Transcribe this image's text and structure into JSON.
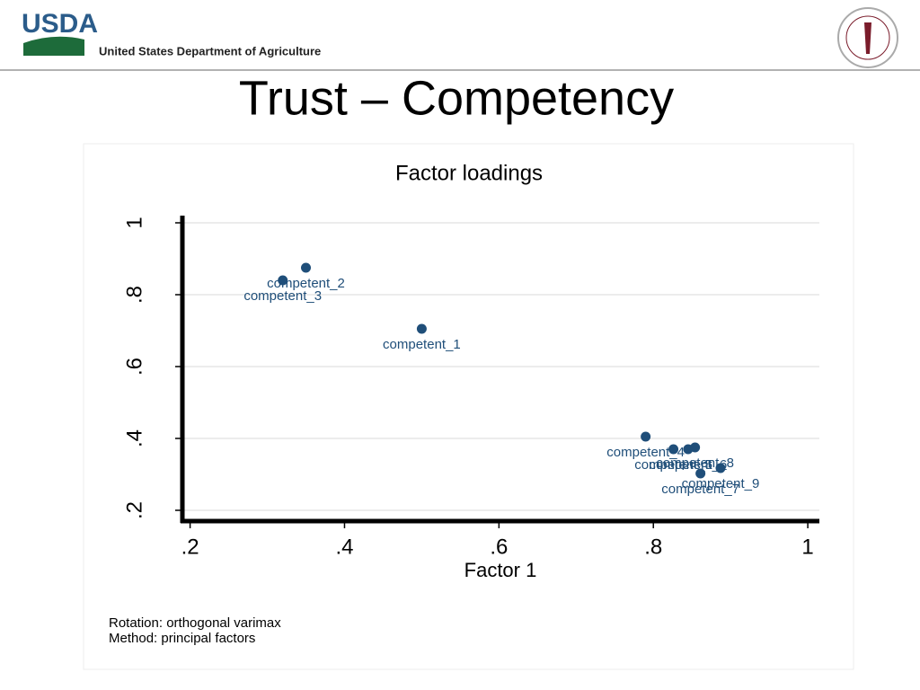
{
  "header": {
    "logo": "USDA",
    "agency": "United States Department of Agriculture"
  },
  "slide_title": "Trust – Competency",
  "chart_data": {
    "type": "scatter",
    "title": "Factor loadings",
    "x_label": "Factor 1",
    "notes": [
      "Rotation: orthogonal varimax",
      "Method: principal factors"
    ],
    "xlim": [
      0.19,
      1.015
    ],
    "ylim": [
      0.17,
      1.02
    ],
    "xticks": [
      {
        "value": 0.2,
        "label": ".2"
      },
      {
        "value": 0.4,
        "label": ".4"
      },
      {
        "value": 0.6,
        "label": ".6"
      },
      {
        "value": 0.8,
        "label": ".8"
      },
      1
    ],
    "yticks": [
      {
        "value": 0.2,
        "label": ".2"
      },
      {
        "value": 0.4,
        "label": ".4"
      },
      {
        "value": 0.6,
        "label": ".6"
      },
      {
        "value": 0.8,
        "label": ".8"
      },
      1
    ],
    "grid": true,
    "series": [
      {
        "color": "#1f4e79",
        "labels": [
          "competent_1",
          "competent_2",
          "competent_3",
          "competent_4",
          "competent_5",
          "competent_6",
          "competent_7",
          "competent_8",
          "competent_9"
        ],
        "x": [
          0.5,
          0.35,
          0.32,
          0.79,
          0.826,
          0.845,
          0.861,
          0.854,
          0.887
        ],
        "values": [
          0.705,
          0.875,
          0.84,
          0.405,
          0.37,
          0.37,
          0.3025,
          0.375,
          0.3175
        ]
      }
    ]
  }
}
